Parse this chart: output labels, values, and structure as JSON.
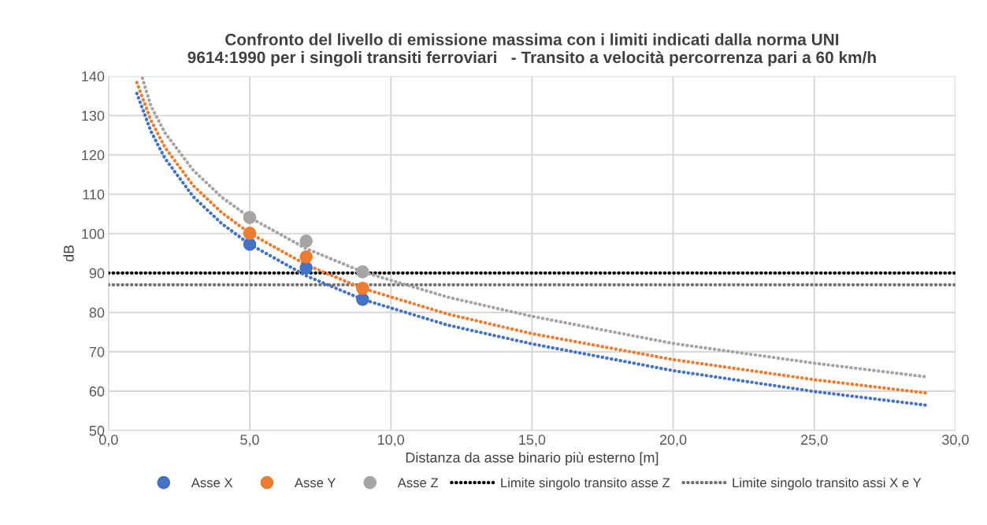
{
  "chart_data": {
    "type": "scatter",
    "title": "Confronto del livello di emissione massima con i limiti indicati dalla norma UNI\n9614:1990 per i singoli transiti ferroviari   - Transito a velocità percorrenza pari a 60 km/h",
    "xlabel": "Distanza da asse binario più esterno [m]",
    "ylabel": "dB",
    "xlim": [
      0,
      30
    ],
    "xticks": [
      {
        "value": 0,
        "label": "0,0"
      },
      {
        "value": 5,
        "label": "5,0"
      },
      {
        "value": 10,
        "label": "10,0"
      },
      {
        "value": 15,
        "label": "15,0"
      },
      {
        "value": 20,
        "label": "20,0"
      },
      {
        "value": 25,
        "label": "25,0"
      },
      {
        "value": 30,
        "label": "30,0"
      }
    ],
    "ylim": [
      50,
      140
    ],
    "yticks": [
      50,
      60,
      70,
      80,
      90,
      100,
      110,
      120,
      130,
      140
    ],
    "grid": true,
    "legend": "bottom",
    "marker": "circle",
    "series": [
      {
        "name": "Asse X",
        "color": "#4472c4",
        "x": [
          5,
          7,
          9
        ],
        "values": [
          97.3,
          91.3,
          83.3
        ]
      },
      {
        "name": "Asse Y",
        "color": "#ed7d31",
        "x": [
          5,
          7,
          9
        ],
        "values": [
          100.1,
          94.1,
          86.1
        ]
      },
      {
        "name": "Asse Z",
        "color": "#a5a5a5",
        "x": [
          5,
          7,
          9
        ],
        "values": [
          104.1,
          98.1,
          90.3
        ]
      },
      {
        "name": "Limite singolo transito asse Z",
        "type": "line",
        "line_style": "dotted",
        "marker": "none",
        "color": "#000000",
        "x": [
          0,
          30
        ],
        "values": [
          90,
          90
        ]
      },
      {
        "name": "Limite singolo transito assi X e Y",
        "type": "line",
        "line_style": "dotted",
        "marker": "none",
        "color": "#767171",
        "x": [
          0,
          30
        ],
        "values": [
          87,
          87
        ]
      },
      {
        "type": "line",
        "line_style": "dotted",
        "marker": "none",
        "color": "#4472c4",
        "x": [
          1,
          1.5,
          2,
          3,
          4,
          5,
          7,
          9,
          12,
          15,
          20,
          25,
          29
        ],
        "values": [
          135.6,
          126,
          119.1,
          109.4,
          102.6,
          97.3,
          89.3,
          83.3,
          76.8,
          72,
          65.2,
          59.9,
          56.4
        ]
      },
      {
        "type": "line",
        "line_style": "dotted",
        "marker": "none",
        "color": "#ed7d31",
        "x": [
          1,
          1.5,
          2,
          3,
          4,
          5,
          7,
          9,
          12,
          15,
          20,
          25,
          29
        ],
        "values": [
          138.4,
          128.8,
          121.9,
          112.2,
          105.4,
          100.1,
          92.1,
          86.1,
          79.6,
          74.6,
          68,
          62.9,
          59.5
        ]
      },
      {
        "type": "line",
        "line_style": "dotted",
        "marker": "none",
        "color": "#a5a5a5",
        "x": [
          1.2,
          1.5,
          2,
          3,
          4,
          5,
          7,
          9,
          12,
          15,
          20,
          25,
          29
        ],
        "values": [
          139.5,
          132.4,
          125.6,
          116.1,
          109.3,
          104.1,
          96.2,
          90.3,
          83.9,
          79,
          72.1,
          67.1,
          63.6
        ]
      }
    ]
  }
}
